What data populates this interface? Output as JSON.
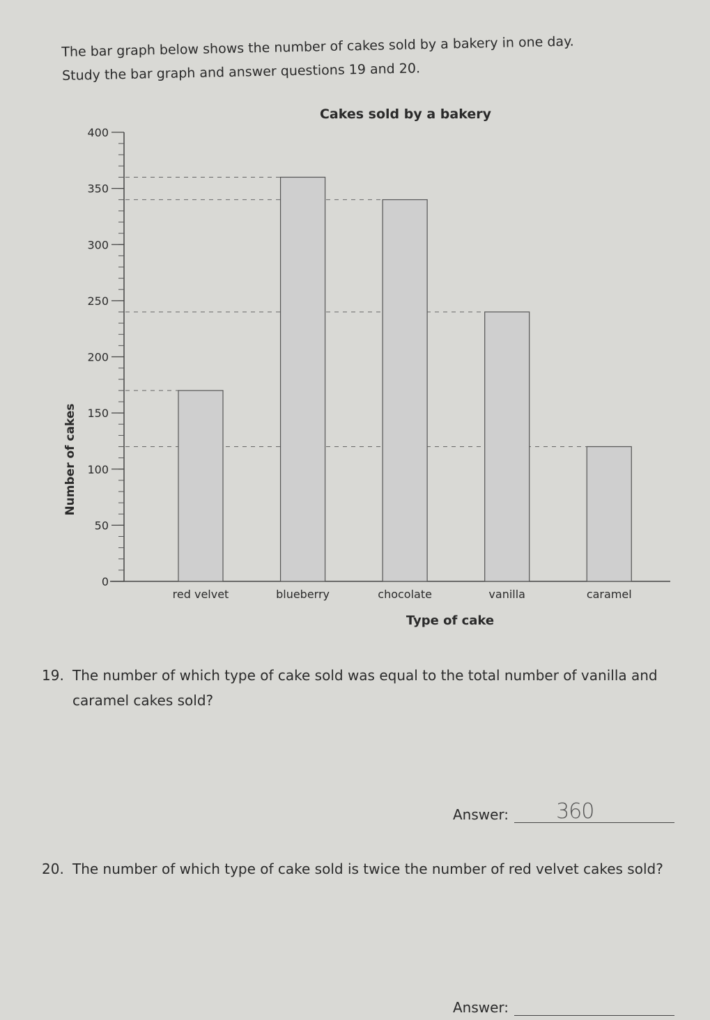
{
  "intro": {
    "line1": "The bar graph below shows the number of cakes sold by a bakery in one day.",
    "line2": "Study the bar graph and answer questions 19 and 20."
  },
  "chart_data": {
    "type": "bar",
    "title": "Cakes sold by a bakery",
    "xlabel": "Type of cake",
    "ylabel": "Number of cakes",
    "categories": [
      "red velvet",
      "blueberry",
      "chocolate",
      "vanilla",
      "caramel"
    ],
    "values": [
      170,
      360,
      340,
      240,
      120
    ],
    "ylim": [
      0,
      400
    ],
    "yticks": [
      0,
      50,
      100,
      150,
      200,
      250,
      300,
      350,
      400
    ],
    "minor_tick_step": 10,
    "grid": false,
    "dashed_reference_lines": true,
    "bar_color": "#cfcfcf"
  },
  "questions": [
    {
      "number": "19.",
      "text": "The number of which type of cake sold was equal to the total number of vanilla and caramel cakes sold?",
      "answer_label": "Answer:",
      "answer": "360"
    },
    {
      "number": "20.",
      "text": "The number of which type of cake sold is twice the number of red velvet cakes sold?",
      "answer_label": "Answer:",
      "answer": ""
    }
  ]
}
